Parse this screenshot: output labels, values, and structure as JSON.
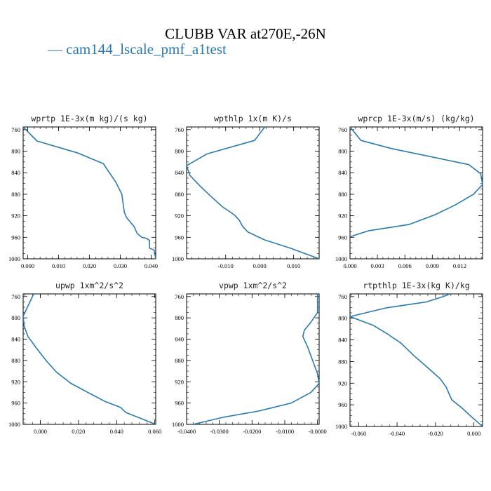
{
  "figure": {
    "title": "CLUBB VAR at270E,-26N",
    "legend": [
      {
        "marker": "—",
        "label": "cam144_lscale_pmf_a1test",
        "color": "#2a7ab0"
      }
    ]
  },
  "chart_data": [
    {
      "type": "line",
      "title": "wprtp  1E-3x(m kg)/(s kg)",
      "xlim": [
        -0.0015,
        0.0415
      ],
      "ylim": [
        1000,
        755
      ],
      "y_inverted": true,
      "xticks": [
        0.0,
        0.01,
        0.02,
        0.03,
        0.04
      ],
      "xtick_labels": [
        "0.000",
        "0.010",
        "0.020",
        "0.030",
        "0.040"
      ],
      "yticks": [
        760,
        800,
        840,
        880,
        920,
        960,
        1000
      ],
      "ytick_labels": [
        "760",
        "800",
        "840",
        "880",
        "920",
        "960",
        "1000"
      ],
      "series": [
        {
          "color": "#2a7ab0",
          "points": [
            [
              -0.0015,
              755
            ],
            [
              0.003,
              781
            ],
            [
              0.016,
              803
            ],
            [
              0.0245,
              823
            ],
            [
              0.026,
              836
            ],
            [
              0.0285,
              857
            ],
            [
              0.0305,
              880
            ],
            [
              0.031,
              900
            ],
            [
              0.0313,
              913
            ],
            [
              0.032,
              923
            ],
            [
              0.0345,
              940
            ],
            [
              0.0355,
              953
            ],
            [
              0.037,
              960
            ],
            [
              0.0385,
              962
            ],
            [
              0.0395,
              966
            ],
            [
              0.0395,
              980
            ],
            [
              0.041,
              984
            ],
            [
              0.0415,
              1000
            ]
          ]
        }
      ]
    },
    {
      "type": "line",
      "title": "wpthlp  1x(m K)/s",
      "xlim": [
        -0.0215,
        0.0175
      ],
      "ylim": [
        1000,
        755
      ],
      "y_inverted": true,
      "xticks": [
        -0.01,
        0.0,
        0.01
      ],
      "xtick_labels": [
        "-0.010",
        "0.000",
        "0.010"
      ],
      "yticks": [
        760,
        800,
        840,
        880,
        920,
        960,
        1000
      ],
      "ytick_labels": [
        "760",
        "800",
        "840",
        "880",
        "920",
        "960",
        "1000"
      ],
      "series": [
        {
          "color": "#2a7ab0",
          "points": [
            [
              0.0015,
              755
            ],
            [
              -0.0015,
              780
            ],
            [
              -0.0155,
              805
            ],
            [
              -0.0215,
              827
            ],
            [
              -0.0205,
              845
            ],
            [
              -0.0175,
              865
            ],
            [
              -0.0145,
              883
            ],
            [
              -0.011,
              903
            ],
            [
              -0.0075,
              918
            ],
            [
              -0.006,
              928
            ],
            [
              -0.005,
              940
            ],
            [
              -0.0035,
              950
            ],
            [
              0.0015,
              965
            ],
            [
              0.009,
              980
            ],
            [
              0.0175,
              1000
            ]
          ]
        }
      ]
    },
    {
      "type": "line",
      "title": "wprcp  1E-3x(m/s) (kg/kg)",
      "xlim": [
        0.0,
        0.0145
      ],
      "ylim": [
        1000,
        755
      ],
      "y_inverted": true,
      "xticks": [
        0.0,
        0.003,
        0.006,
        0.009,
        0.012
      ],
      "xtick_labels": [
        "0.000",
        "0.003",
        "0.006",
        "0.009",
        "0.012"
      ],
      "yticks": [
        760,
        800,
        840,
        880,
        920,
        960,
        1000
      ],
      "ytick_labels": [
        "760",
        "800",
        "840",
        "880",
        "920",
        "960",
        "1000"
      ],
      "series": [
        {
          "color": "#2a7ab0",
          "points": [
            [
              0.0,
              755
            ],
            [
              0.0012,
              780
            ],
            [
              0.0045,
              795
            ],
            [
              0.013,
              825
            ],
            [
              0.0143,
              842
            ],
            [
              0.0145,
              862
            ],
            [
              0.0135,
              880
            ],
            [
              0.0115,
              900
            ],
            [
              0.0093,
              918
            ],
            [
              0.0065,
              936
            ],
            [
              0.002,
              948
            ],
            [
              0.0,
              959
            ]
          ]
        }
      ]
    },
    {
      "type": "line",
      "title": "upwp  1xm^2/s^2",
      "xlim": [
        -0.009,
        0.0605
      ],
      "ylim": [
        1000,
        755
      ],
      "y_inverted": true,
      "xticks": [
        0.0,
        0.02,
        0.04,
        0.06
      ],
      "xtick_labels": [
        "0.000",
        "0.020",
        "0.040",
        "0.060"
      ],
      "yticks": [
        760,
        800,
        840,
        880,
        920,
        960,
        1000
      ],
      "ytick_labels": [
        "760",
        "800",
        "840",
        "880",
        "920",
        "960",
        "1000"
      ],
      "series": [
        {
          "color": "#2a7ab0",
          "points": [
            [
              -0.0035,
              755
            ],
            [
              -0.009,
              797
            ],
            [
              -0.0085,
              815
            ],
            [
              -0.0065,
              835
            ],
            [
              -0.002,
              857
            ],
            [
              0.003,
              880
            ],
            [
              0.0085,
              902
            ],
            [
              0.016,
              923
            ],
            [
              0.026,
              942
            ],
            [
              0.034,
              957
            ],
            [
              0.042,
              968
            ],
            [
              0.045,
              978
            ],
            [
              0.0605,
              1000
            ]
          ]
        }
      ]
    },
    {
      "type": "line",
      "title": "vpwp  1xm^2/s^2",
      "xlim": [
        -0.04,
        0.0005
      ],
      "ylim": [
        1000,
        755
      ],
      "y_inverted": true,
      "xticks": [
        -0.04,
        -0.03,
        -0.02,
        -0.01,
        0.0
      ],
      "xtick_labels": [
        "-0.0400",
        "-0.0300",
        "-0.0200",
        "-0.0100",
        "-0.0000"
      ],
      "yticks": [
        760,
        800,
        840,
        880,
        920,
        960,
        1000
      ],
      "ytick_labels": [
        "760",
        "800",
        "840",
        "880",
        "920",
        "960",
        "1000"
      ],
      "series": [
        {
          "color": "#2a7ab0",
          "points": [
            [
              0.0,
              755
            ],
            [
              0.0,
              790
            ],
            [
              -0.002,
              808
            ],
            [
              -0.004,
              823
            ],
            [
              -0.0045,
              835
            ],
            [
              -0.003,
              855
            ],
            [
              -0.0015,
              880
            ],
            [
              0.0,
              905
            ],
            [
              0.0005,
              923
            ],
            [
              -0.002,
              940
            ],
            [
              -0.008,
              960
            ],
            [
              -0.018,
              975
            ],
            [
              -0.029,
              987
            ],
            [
              -0.038,
              1000
            ]
          ]
        }
      ]
    },
    {
      "type": "line",
      "title": "rtpthlp  1E-3x(kg K)/kg",
      "xlim": [
        -0.0645,
        0.0045
      ],
      "ylim": [
        1000,
        755
      ],
      "y_inverted": true,
      "xticks": [
        -0.06,
        -0.04,
        -0.02,
        0.0
      ],
      "xtick_labels": [
        "-0.060",
        "-0.040",
        "-0.020",
        "0.000"
      ],
      "yticks": [
        760,
        800,
        840,
        880,
        920,
        960,
        1000
      ],
      "ytick_labels": [
        "760",
        "800",
        "840",
        "880",
        "920",
        "960",
        "1000"
      ],
      "series": [
        {
          "color": "#2a7ab0",
          "points": [
            [
              -0.0125,
              755
            ],
            [
              -0.016,
              760
            ],
            [
              -0.025,
              770
            ],
            [
              -0.046,
              781
            ],
            [
              -0.0645,
              797
            ],
            [
              -0.0525,
              813
            ],
            [
              -0.045,
              829
            ],
            [
              -0.038,
              846
            ],
            [
              -0.031,
              870
            ],
            [
              -0.0245,
              890
            ],
            [
              -0.0175,
              912
            ],
            [
              -0.0145,
              927
            ],
            [
              -0.0125,
              943
            ],
            [
              -0.0115,
              951
            ],
            [
              -0.0065,
              965
            ],
            [
              -0.001,
              983
            ],
            [
              0.0045,
              1000
            ]
          ]
        }
      ]
    }
  ]
}
